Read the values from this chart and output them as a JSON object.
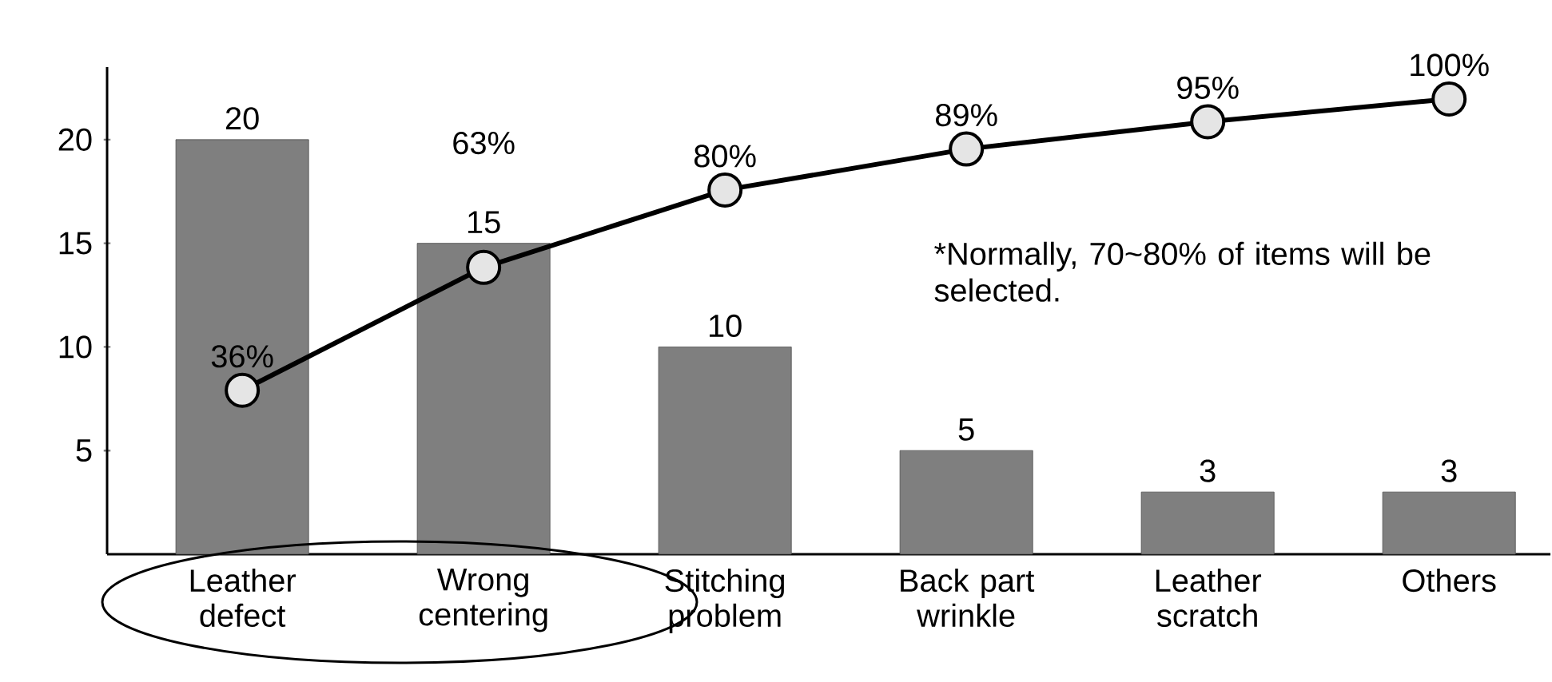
{
  "chart_data": {
    "type": "bar",
    "categories": [
      "Leather defect",
      "Wrong centering",
      "Stitching problem",
      "Back part wrinkle",
      "Leather scratch",
      "Others"
    ],
    "values": [
      20,
      15,
      10,
      5,
      3,
      3
    ],
    "color": "#7f7f7f",
    "data_labels": true,
    "ylim": [
      0,
      23.5
    ],
    "yticks": [
      5,
      10,
      15,
      20
    ],
    "y2lim": [
      0,
      107
    ],
    "series": [
      {
        "type": "line",
        "axis": "y2",
        "color": "#000000",
        "values": [
          36,
          63,
          80,
          89,
          95,
          100
        ],
        "value_labels": [
          "36%",
          "63%",
          "80%",
          "89%",
          "95%",
          "100%"
        ],
        "marker": "circle"
      }
    ],
    "annotations": [
      "*Normally, 70~80% of items will be selected."
    ]
  }
}
